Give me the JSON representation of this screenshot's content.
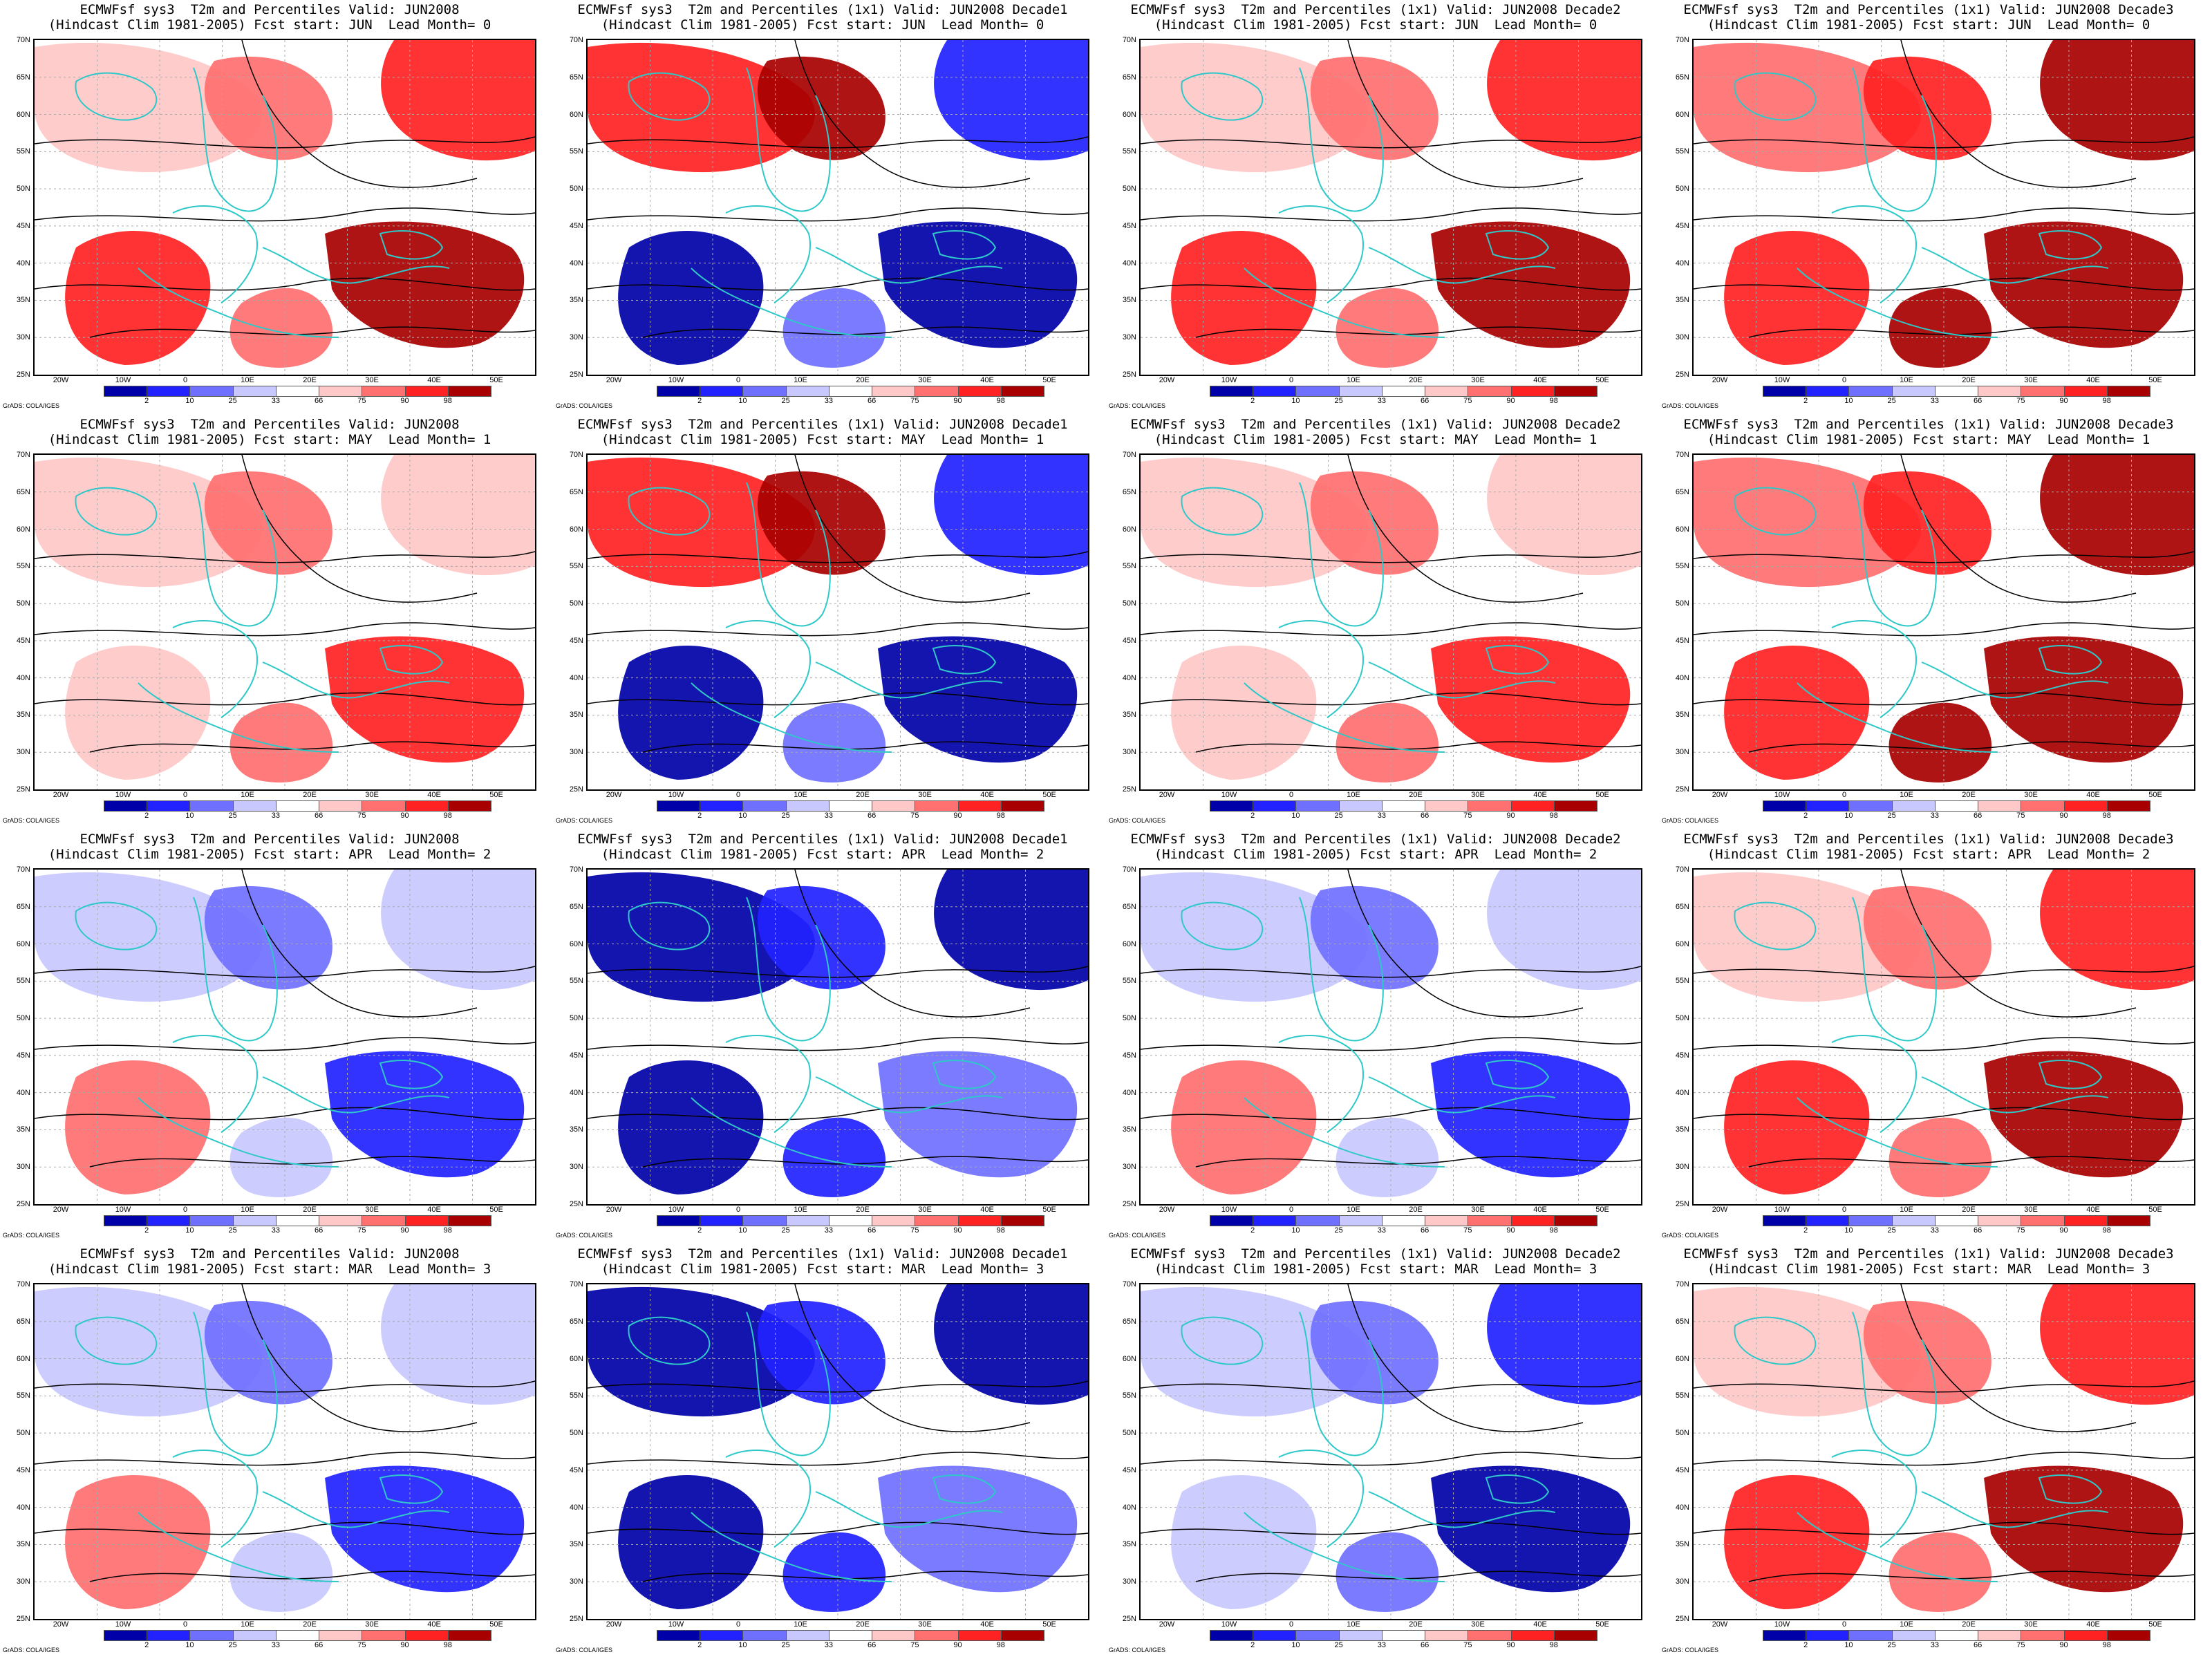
{
  "figure": {
    "colorbar": {
      "ticks": [
        "2",
        "10",
        "25",
        "33",
        "66",
        "75",
        "90",
        "98"
      ],
      "colors": [
        "#0000a8",
        "#2222ff",
        "#7070ff",
        "#c8c8ff",
        "#ffffff",
        "#ffc8c8",
        "#ff7070",
        "#ff2222",
        "#a80000"
      ]
    },
    "credit": "GrADS: COLA/IGES",
    "lat_ticks": [
      "70N",
      "65N",
      "60N",
      "55N",
      "50N",
      "45N",
      "40N",
      "35N",
      "30N",
      "25N"
    ],
    "lon_ticks": [
      "20W",
      "10W",
      "0",
      "10E",
      "20E",
      "30E",
      "40E",
      "50E"
    ],
    "colors": {
      "coastline": "#2ec8c8",
      "contour": "#000000"
    }
  },
  "panels": [
    {
      "title1": "ECMWFsf sys3  T2m and Percentiles Valid: JUN2008",
      "title2": "(Hindcast Clim 1981-2005) Fcst start: JUN  Lead Month= 0",
      "anomaly": "warm"
    },
    {
      "title1": "ECMWFsf sys3  T2m and Percentiles (1x1) Valid: JUN2008 Decade1",
      "title2": "(Hindcast Clim 1981-2005) Fcst start: JUN  Lead Month= 0",
      "anomaly": "mixed"
    },
    {
      "title1": "ECMWFsf sys3  T2m and Percentiles (1x1) Valid: JUN2008 Decade2",
      "title2": "(Hindcast Clim 1981-2005) Fcst start: JUN  Lead Month= 0",
      "anomaly": "warm"
    },
    {
      "title1": "ECMWFsf sys3  T2m and Percentiles (1x1) Valid: JUN2008 Decade3",
      "title2": "(Hindcast Clim 1981-2005) Fcst start: JUN  Lead Month= 0",
      "anomaly": "very-warm"
    },
    {
      "title1": "ECMWFsf sys3  T2m and Percentiles Valid: JUN2008",
      "title2": "(Hindcast Clim 1981-2005) Fcst start: MAY  Lead Month= 1",
      "anomaly": "mild-warm"
    },
    {
      "title1": "ECMWFsf sys3  T2m and Percentiles (1x1) Valid: JUN2008 Decade1",
      "title2": "(Hindcast Clim 1981-2005) Fcst start: MAY  Lead Month= 1",
      "anomaly": "mixed"
    },
    {
      "title1": "ECMWFsf sys3  T2m and Percentiles (1x1) Valid: JUN2008 Decade2",
      "title2": "(Hindcast Clim 1981-2005) Fcst start: MAY  Lead Month= 1",
      "anomaly": "mild-warm"
    },
    {
      "title1": "ECMWFsf sys3  T2m and Percentiles (1x1) Valid: JUN2008 Decade3",
      "title2": "(Hindcast Clim 1981-2005) Fcst start: MAY  Lead Month= 1",
      "anomaly": "very-warm"
    },
    {
      "title1": "ECMWFsf sys3  T2m and Percentiles Valid: JUN2008",
      "title2": "(Hindcast Clim 1981-2005) Fcst start: APR  Lead Month= 2",
      "anomaly": "mild-cool"
    },
    {
      "title1": "ECMWFsf sys3  T2m and Percentiles (1x1) Valid: JUN2008 Decade1",
      "title2": "(Hindcast Clim 1981-2005) Fcst start: APR  Lead Month= 2",
      "anomaly": "very-cold"
    },
    {
      "title1": "ECMWFsf sys3  T2m and Percentiles (1x1) Valid: JUN2008 Decade2",
      "title2": "(Hindcast Clim 1981-2005) Fcst start: APR  Lead Month= 2",
      "anomaly": "mild-cool"
    },
    {
      "title1": "ECMWFsf sys3  T2m and Percentiles (1x1) Valid: JUN2008 Decade3",
      "title2": "(Hindcast Clim 1981-2005) Fcst start: APR  Lead Month= 2",
      "anomaly": "warm"
    },
    {
      "title1": "ECMWFsf sys3  T2m and Percentiles Valid: JUN2008",
      "title2": "(Hindcast Clim 1981-2005) Fcst start: MAR  Lead Month= 3",
      "anomaly": "mild-cool"
    },
    {
      "title1": "ECMWFsf sys3  T2m and Percentiles (1x1) Valid: JUN2008 Decade1",
      "title2": "(Hindcast Clim 1981-2005) Fcst start: MAR  Lead Month= 3",
      "anomaly": "very-cold"
    },
    {
      "title1": "ECMWFsf sys3  T2m and Percentiles (1x1) Valid: JUN2008 Decade2",
      "title2": "(Hindcast Clim 1981-2005) Fcst start: MAR  Lead Month= 3",
      "anomaly": "cool"
    },
    {
      "title1": "ECMWFsf sys3  T2m and Percentiles (1x1) Valid: JUN2008 Decade3",
      "title2": "(Hindcast Clim 1981-2005) Fcst start: MAR  Lead Month= 3",
      "anomaly": "warm"
    }
  ]
}
